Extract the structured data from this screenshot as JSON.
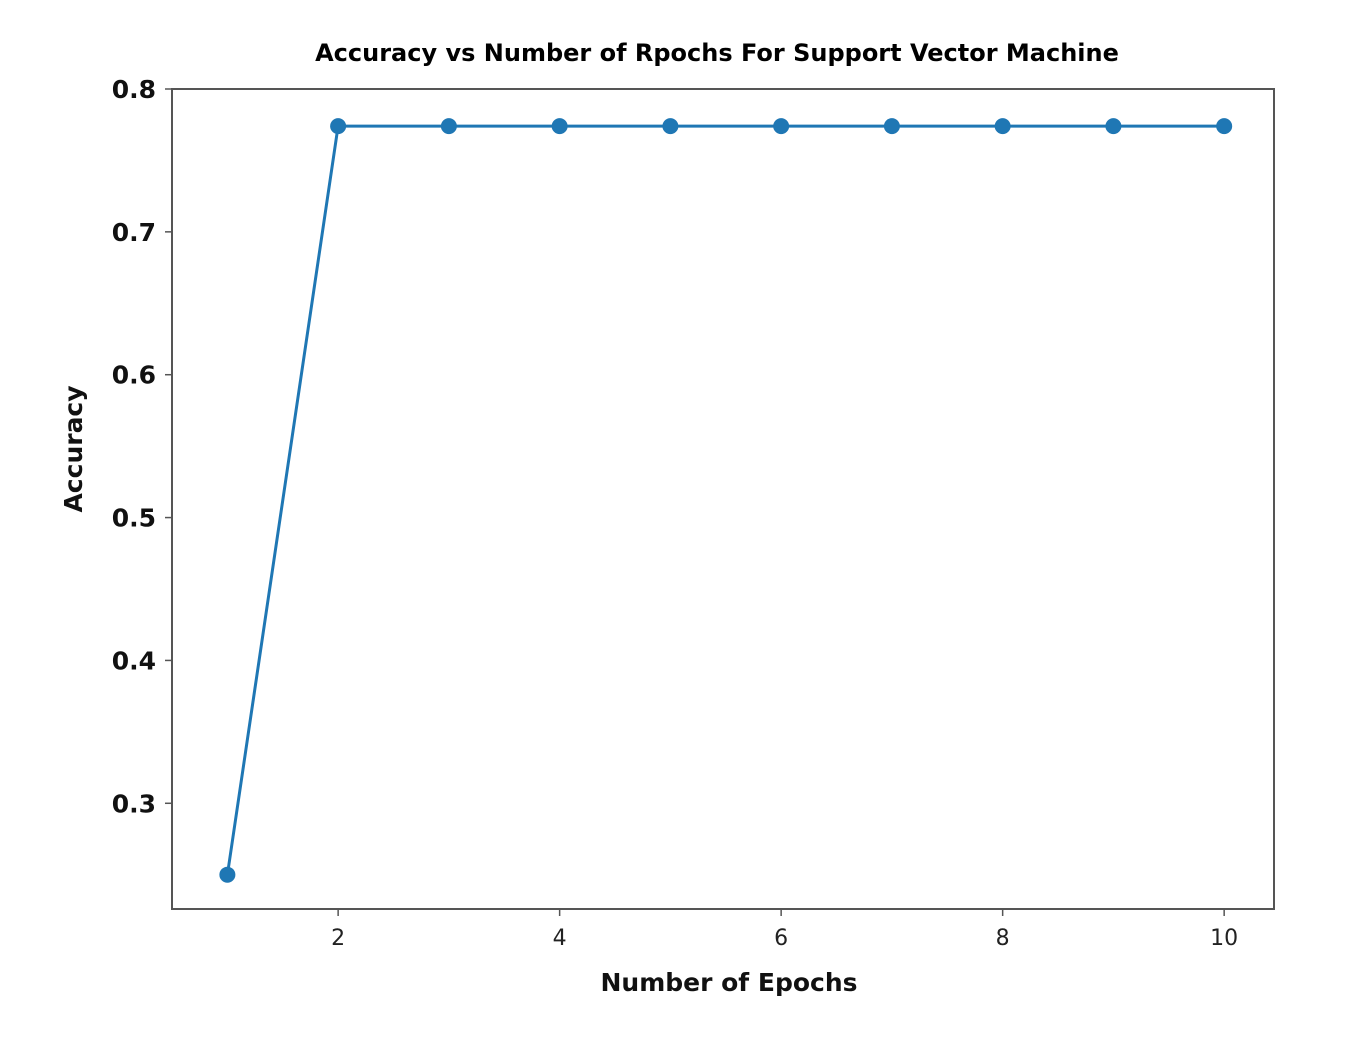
{
  "chart_data": {
    "type": "line",
    "title": "Accuracy vs Number of Rpochs For Support Vector Machine",
    "xlabel": "Number of Epochs",
    "ylabel": "Accuracy",
    "xlim": [
      0.5,
      10.45
    ],
    "ylim": [
      0.226,
      0.8
    ],
    "xticks": [
      2,
      4,
      6,
      8,
      10
    ],
    "yticks": [
      0.3,
      0.4,
      0.5,
      0.6,
      0.7,
      0.8
    ],
    "grid": false,
    "series": [
      {
        "color": "#1f77b4",
        "marker": "circle",
        "x": [
          1,
          2,
          3,
          4,
          5,
          6,
          7,
          8,
          9,
          10
        ],
        "y": [
          0.25,
          0.774,
          0.774,
          0.774,
          0.774,
          0.774,
          0.774,
          0.774,
          0.774,
          0.774
        ]
      }
    ]
  }
}
